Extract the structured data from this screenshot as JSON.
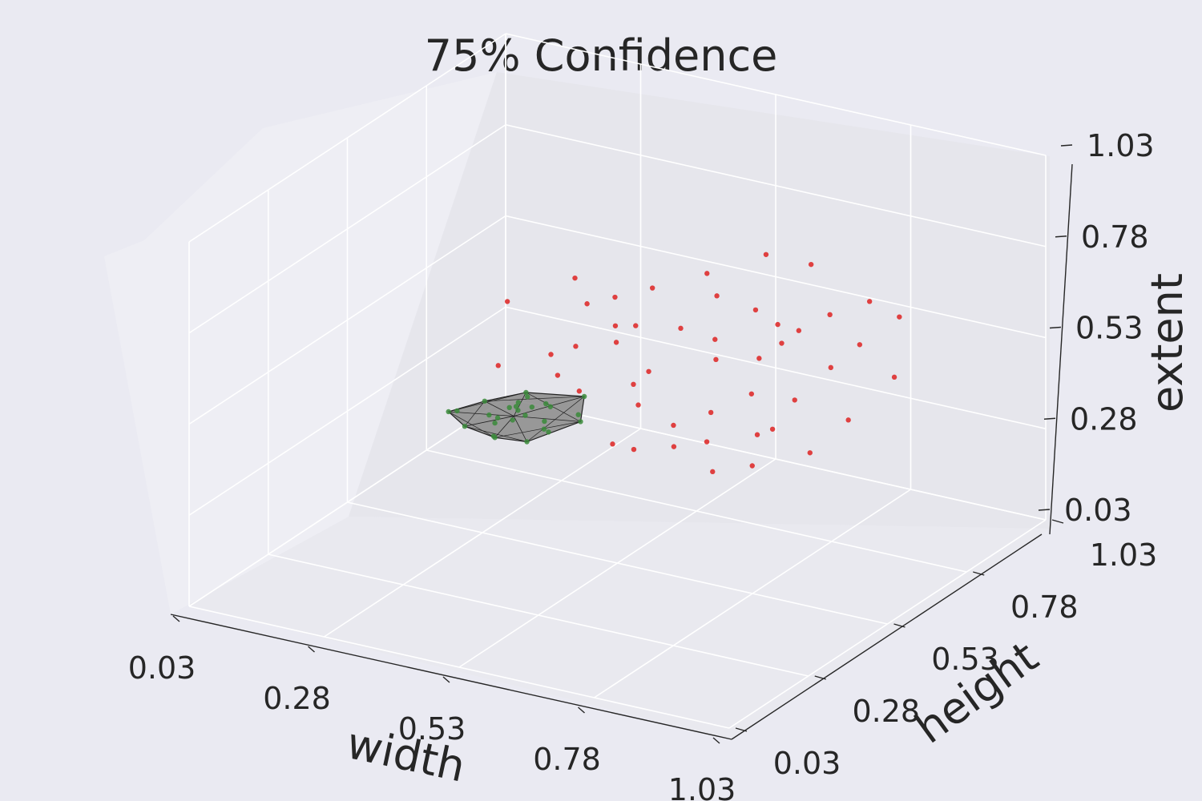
{
  "chart_data": {
    "type": "scatter",
    "projection": "3d",
    "title": "75% Confidence",
    "xlabel": "width",
    "ylabel": "height",
    "zlabel": "extent",
    "xlim": [
      0.03,
      1.03
    ],
    "ylim": [
      0.03,
      1.03
    ],
    "zlim": [
      0.03,
      1.03
    ],
    "xticks": [
      "0.03",
      "0.28",
      "0.53",
      "0.78",
      "1.03"
    ],
    "yticks": [
      "0.03",
      "0.28",
      "0.53",
      "0.78",
      "1.03"
    ],
    "zticks": [
      "0.03",
      "0.28",
      "0.53",
      "0.78",
      "1.03"
    ],
    "grid": true,
    "colors": {
      "background": "#eaeaf2",
      "pane_left": "#eeeef4",
      "pane_back": "#e6e6ec",
      "pane_floor": "#e9e9ef",
      "grid": "#ffffff",
      "axis_line": "#262626",
      "inside_points": "#3a8a3a",
      "outside_points": "#dd2222",
      "hull_face": "#8a8a8a",
      "hull_edge": "#222222"
    },
    "series": [
      {
        "marker": "green",
        "values": [
          [
            0.33,
            0.53,
            0.39
          ],
          [
            0.28,
            0.45,
            0.41
          ],
          [
            0.33,
            0.58,
            0.34
          ],
          [
            0.41,
            0.63,
            0.39
          ],
          [
            0.33,
            0.54,
            0.35
          ],
          [
            0.27,
            0.44,
            0.41
          ],
          [
            0.35,
            0.45,
            0.36
          ],
          [
            0.43,
            0.47,
            0.42
          ],
          [
            0.32,
            0.51,
            0.37
          ],
          [
            0.39,
            0.48,
            0.48
          ],
          [
            0.34,
            0.54,
            0.38
          ],
          [
            0.4,
            0.52,
            0.36
          ],
          [
            0.36,
            0.55,
            0.39
          ],
          [
            0.38,
            0.56,
            0.4
          ],
          [
            0.45,
            0.55,
            0.38
          ],
          [
            0.29,
            0.52,
            0.4
          ],
          [
            0.37,
            0.49,
            0.44
          ],
          [
            0.4,
            0.54,
            0.41
          ],
          [
            0.33,
            0.48,
            0.34
          ],
          [
            0.36,
            0.5,
            0.42
          ],
          [
            0.3,
            0.44,
            0.38
          ],
          [
            0.38,
            0.5,
            0.33
          ],
          [
            0.44,
            0.56,
            0.39
          ],
          [
            0.35,
            0.45,
            0.4
          ],
          [
            0.42,
            0.5,
            0.37
          ],
          [
            0.31,
            0.5,
            0.38
          ],
          [
            0.34,
            0.57,
            0.4
          ]
        ]
      },
      {
        "marker": "red",
        "values": [
          [
            0.38,
            0.69,
            0.6
          ],
          [
            0.42,
            0.71,
            0.62
          ],
          [
            0.34,
            0.72,
            0.64
          ],
          [
            0.46,
            0.76,
            0.63
          ],
          [
            0.52,
            0.83,
            0.65
          ],
          [
            0.47,
            0.69,
            0.57
          ],
          [
            0.55,
            0.81,
            0.61
          ],
          [
            0.61,
            0.83,
            0.58
          ],
          [
            0.64,
            0.79,
            0.48
          ],
          [
            0.69,
            0.83,
            0.55
          ],
          [
            0.73,
            0.86,
            0.59
          ],
          [
            0.6,
            0.88,
            0.7
          ],
          [
            0.56,
            0.79,
            0.45
          ],
          [
            0.5,
            0.68,
            0.46
          ],
          [
            0.62,
            0.8,
            0.37
          ],
          [
            0.58,
            0.74,
            0.34
          ],
          [
            0.66,
            0.75,
            0.3
          ],
          [
            0.54,
            0.69,
            0.32
          ],
          [
            0.7,
            0.8,
            0.38
          ],
          [
            0.49,
            0.65,
            0.26
          ],
          [
            0.44,
            0.68,
            0.52
          ],
          [
            0.4,
            0.62,
            0.53
          ],
          [
            0.36,
            0.61,
            0.5
          ],
          [
            0.75,
            0.92,
            0.48
          ],
          [
            0.78,
            0.9,
            0.62
          ],
          [
            0.68,
            0.7,
            0.25
          ],
          [
            0.63,
            0.66,
            0.24
          ],
          [
            0.59,
            0.71,
            0.28
          ],
          [
            0.72,
            0.88,
            0.43
          ],
          [
            0.48,
            0.6,
            0.3
          ],
          [
            0.45,
            0.66,
            0.58
          ],
          [
            0.57,
            0.77,
            0.52
          ],
          [
            0.66,
            0.92,
            0.67
          ],
          [
            0.8,
            0.96,
            0.55
          ],
          [
            0.43,
            0.58,
            0.44
          ],
          [
            0.51,
            0.63,
            0.4
          ],
          [
            0.77,
            0.85,
            0.32
          ],
          [
            0.61,
            0.9,
            0.5
          ],
          [
            0.39,
            0.58,
            0.47
          ],
          [
            0.53,
            0.73,
            0.56
          ],
          [
            0.28,
            0.58,
            0.46
          ],
          [
            0.25,
            0.66,
            0.58
          ],
          [
            0.67,
            0.81,
            0.52
          ],
          [
            0.74,
            0.78,
            0.26
          ],
          [
            0.82,
            0.91,
            0.42
          ],
          [
            0.7,
            0.73,
            0.34
          ],
          [
            0.57,
            0.64,
            0.3
          ],
          [
            0.46,
            0.7,
            0.4
          ]
        ]
      }
    ]
  }
}
